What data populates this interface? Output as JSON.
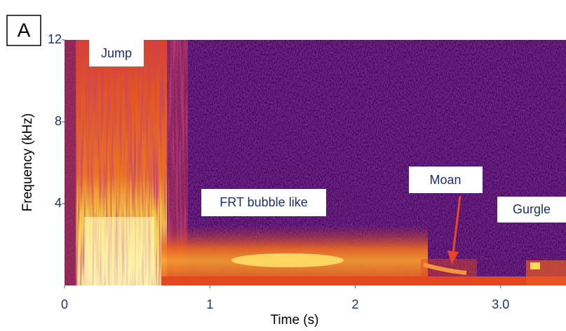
{
  "chart_data": {
    "type": "spectrogram",
    "panel_label": "A",
    "x_label": "Time (s)",
    "y_label": "Frequency (kHz)",
    "xlim": [
      0,
      3.45
    ],
    "xticks": [
      0,
      1,
      2,
      {
        "value": 3,
        "label": "3.0"
      }
    ],
    "ylim": [
      0,
      12
    ],
    "yticks": [
      4,
      8,
      12
    ],
    "annotations": [
      "Jump",
      "FRT bubble like",
      "Moan",
      "Gurgle"
    ]
  }
}
